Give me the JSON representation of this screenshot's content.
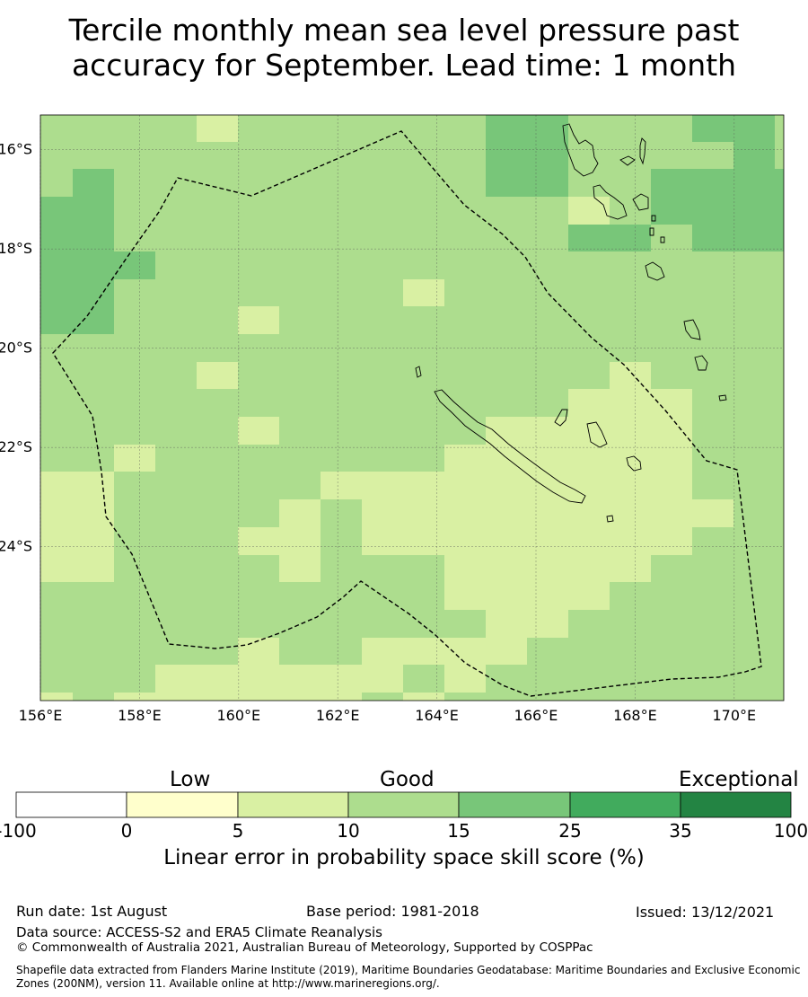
{
  "title": {
    "line1": "Tercile monthly mean sea level pressure past",
    "line2": "accuracy for September. Lead time: 1 month"
  },
  "map": {
    "lon_range": [
      156,
      171
    ],
    "lat_range": [
      -27.1,
      -15.3
    ],
    "x_ticks": [
      "156°E",
      "158°E",
      "160°E",
      "162°E",
      "164°E",
      "166°E",
      "168°E",
      "170°E"
    ],
    "y_ticks": [
      "16°S",
      "18°S",
      "20°S",
      "22°S",
      "24°S"
    ],
    "grid_lines": true,
    "boundary": "Exclusive Economic Zone (dashed)",
    "default_category": 15
  },
  "colorbar": {
    "label": "Linear error in probability space skill score (%)",
    "words": [
      "Low",
      "Good",
      "Exceptional"
    ],
    "ticks": [
      "-100",
      "0",
      "5",
      "10",
      "15",
      "25",
      "35",
      "100"
    ],
    "colors": [
      "#ffffff",
      "#ffffcc",
      "#d9f0a3",
      "#addd8e",
      "#78c679",
      "#41ab5d",
      "#238443"
    ]
  },
  "footer": {
    "run_date": "Run date: 1st August",
    "base_period": "Base period: 1981-2018",
    "issued": "Issued: 13/12/2021",
    "data_source": "Data source: ACCESS-S2 and ERA5 Climate Reanalysis",
    "copyright": "© Commonwealth of Australia 2021, Australian Bureau of Meteorology, Supported by COSPPac",
    "shapefile_line1": "Shapefile data extracted from Flanders Marine Institute (2019), Maritime Boundaries Geodatabase: Maritime Boundaries and Exclusive Economic",
    "shapefile_line2": "Zones (200NM), version 11. Available online at http://www.marineregions.org/."
  }
}
